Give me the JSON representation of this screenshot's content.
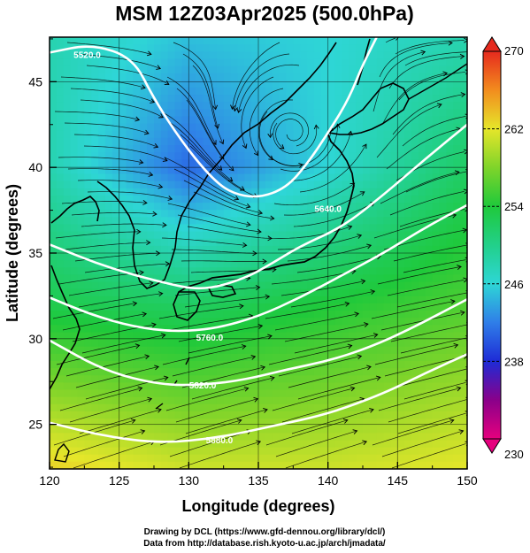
{
  "chart_data": {
    "type": "heatmap",
    "title": "MSM 12Z03Apr2025 (500.0hPa)",
    "xlabel": "Longitude (degrees)",
    "ylabel": "Latitude  (degrees)",
    "xlim": [
      120,
      150
    ],
    "ylim": [
      22.4,
      47.6
    ],
    "x_ticks": [
      "120",
      "125",
      "130",
      "135",
      "140",
      "145",
      "150"
    ],
    "y_ticks": [
      "25",
      "30",
      "35",
      "40",
      "45"
    ],
    "x_tick_values": [
      120,
      125,
      130,
      135,
      140,
      145,
      150
    ],
    "y_tick_values": [
      25,
      30,
      35,
      40,
      45
    ],
    "grid": true,
    "field": "temperature",
    "colorbar": {
      "min": 230,
      "max": 270,
      "tick_labels": [
        "270",
        "262",
        "254",
        "246",
        "238",
        "230"
      ],
      "tick_values": [
        270,
        262,
        254,
        246,
        238,
        230
      ],
      "stops": [
        {
          "value": 230,
          "color": "#e6007e"
        },
        {
          "value": 234,
          "color": "#8a008a"
        },
        {
          "value": 238,
          "color": "#1e2bd6"
        },
        {
          "value": 242,
          "color": "#2f7ee8"
        },
        {
          "value": 246,
          "color": "#2ed6d6"
        },
        {
          "value": 250,
          "color": "#22d08a"
        },
        {
          "value": 254,
          "color": "#1fc93b"
        },
        {
          "value": 258,
          "color": "#7fd42a"
        },
        {
          "value": 262,
          "color": "#e6e62a"
        },
        {
          "value": 266,
          "color": "#f28c1e"
        },
        {
          "value": 270,
          "color": "#e62a1e"
        }
      ]
    },
    "temperature_field": {
      "x": [
        120,
        130,
        140,
        150
      ],
      "y": [
        47.6,
        40,
        32,
        22.4
      ],
      "values": [
        [
          248,
          245,
          246,
          248
        ],
        [
          248,
          241,
          246,
          252
        ],
        [
          253,
          252,
          254,
          256
        ],
        [
          263,
          261,
          261,
          262
        ]
      ]
    },
    "height_contours": [
      {
        "label": "5520.0",
        "points": [
          [
            120,
            46.7
          ],
          [
            123,
            47.2
          ],
          [
            126,
            46.4
          ],
          [
            127.5,
            44
          ],
          [
            129.5,
            41.5
          ],
          [
            131.5,
            39.5
          ],
          [
            133,
            38.5
          ],
          [
            135,
            38.2
          ],
          [
            137,
            38.8
          ],
          [
            138.5,
            40.2
          ],
          [
            140,
            42
          ],
          [
            141.5,
            44
          ],
          [
            142.5,
            46
          ],
          [
            143.5,
            47.6
          ]
        ]
      },
      {
        "label": "5640.0",
        "points": [
          [
            120,
            35.5
          ],
          [
            124,
            34.2
          ],
          [
            128,
            33.3
          ],
          [
            131,
            32.8
          ],
          [
            134,
            33.5
          ],
          [
            136,
            34.4
          ],
          [
            138,
            35.4
          ],
          [
            141,
            36.5
          ],
          [
            144,
            38.4
          ],
          [
            147,
            40.5
          ],
          [
            150,
            42.5
          ]
        ]
      },
      {
        "label": "5760.0",
        "points": [
          [
            120,
            32.4
          ],
          [
            123,
            31.4
          ],
          [
            126,
            30.7
          ],
          [
            129,
            30.4
          ],
          [
            132,
            30.6
          ],
          [
            135,
            31.3
          ],
          [
            138,
            32.4
          ],
          [
            141,
            33.7
          ],
          [
            144,
            35
          ],
          [
            147,
            36.5
          ],
          [
            150,
            37.8
          ]
        ]
      },
      {
        "label": "5820.0",
        "points": [
          [
            120,
            29.9
          ],
          [
            124,
            28.1
          ],
          [
            128,
            27.3
          ],
          [
            131,
            27.3
          ],
          [
            134,
            27.6
          ],
          [
            137,
            28.2
          ],
          [
            140,
            28.7
          ],
          [
            143,
            29.5
          ],
          [
            146,
            30.6
          ],
          [
            150,
            32.3
          ]
        ]
      },
      {
        "label": "5880.0",
        "points": [
          [
            120,
            25.1
          ],
          [
            124,
            24.3
          ],
          [
            128,
            23.9
          ],
          [
            132,
            24.2
          ],
          [
            136,
            24.9
          ],
          [
            140,
            25.6
          ],
          [
            144,
            26.8
          ],
          [
            147,
            28
          ],
          [
            150,
            29.1
          ]
        ]
      }
    ],
    "contour_labels": [
      {
        "text": "5520.0",
        "lon": 122.7,
        "lat": 46.6
      },
      {
        "text": "5640.0",
        "lon": 140.0,
        "lat": 37.6
      },
      {
        "text": "5760.0",
        "lon": 131.5,
        "lat": 30.1
      },
      {
        "text": "5820.0",
        "lon": 131.0,
        "lat": 27.3
      },
      {
        "text": "5880.0",
        "lon": 132.2,
        "lat": 24.1
      }
    ]
  },
  "credits": {
    "line1": "Drawing by DCL (https://www.gfd-dennou.org/library/dcl/)",
    "line2": "Data from http://database.rish.kyoto-u.ac.jp/arch/jmadata/"
  }
}
